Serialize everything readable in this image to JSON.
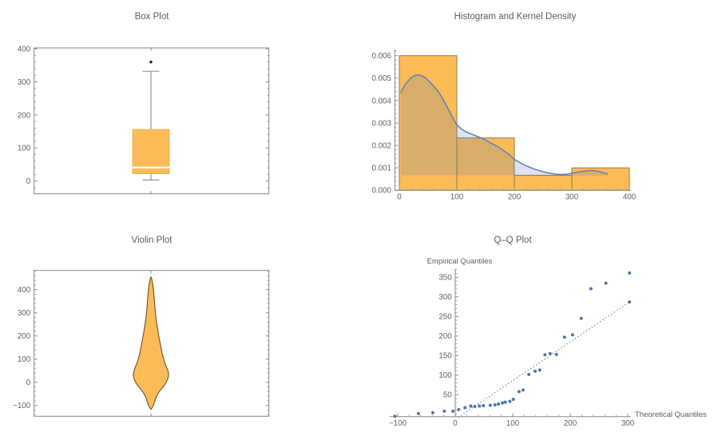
{
  "figure": {
    "kind": "statistical-diagnostics-grid",
    "background": "#ffffff"
  },
  "chart_data": [
    {
      "id": "box",
      "type": "box",
      "title": "Box Plot",
      "orientation": "vertical",
      "stats": {
        "whisker_low": 3,
        "q1": 22,
        "median": 41,
        "q3": 156,
        "whisker_high": 332,
        "outliers": [
          360
        ]
      },
      "yticks": {
        "values": [
          0,
          100,
          200,
          300,
          400
        ],
        "labels": [
          "0",
          "100",
          "200",
          "300",
          "400"
        ]
      },
      "ylim": [
        -39,
        403
      ],
      "grid": false
    },
    {
      "id": "histogram_kde",
      "type": "histogram",
      "title": "Histogram and Kernel Density",
      "bin_width": 100,
      "bins": [
        {
          "from": 0,
          "to": 100,
          "density": 0.006
        },
        {
          "from": 100,
          "to": 200,
          "density": 0.002333
        },
        {
          "from": 200,
          "to": 300,
          "density": 0.000667
        },
        {
          "from": 300,
          "to": 400,
          "density": 0.001
        }
      ],
      "kde_curve": [
        [
          3,
          0.00436
        ],
        [
          10,
          0.0047
        ],
        [
          20,
          0.005
        ],
        [
          30,
          0.00513
        ],
        [
          42,
          0.00507
        ],
        [
          55,
          0.00477
        ],
        [
          70,
          0.00431
        ],
        [
          85,
          0.00362
        ],
        [
          100,
          0.00293
        ],
        [
          115,
          0.00262
        ],
        [
          130,
          0.00246
        ],
        [
          145,
          0.0023
        ],
        [
          160,
          0.0021
        ],
        [
          175,
          0.00188
        ],
        [
          190,
          0.00161
        ],
        [
          200,
          0.00138
        ],
        [
          215,
          0.00116
        ],
        [
          230,
          0.00099
        ],
        [
          245,
          0.00086
        ],
        [
          260,
          0.00077
        ],
        [
          272,
          0.00072
        ],
        [
          285,
          0.00071
        ],
        [
          300,
          0.00076
        ],
        [
          315,
          0.00083
        ],
        [
          330,
          0.00088
        ],
        [
          342,
          0.00086
        ],
        [
          352,
          0.0008
        ],
        [
          362,
          0.00073
        ]
      ],
      "kde_fill_baseline": 0.000667,
      "xticks": {
        "values": [
          0,
          100,
          200,
          300,
          400
        ],
        "labels": [
          "0",
          "100",
          "200",
          "300",
          "400"
        ]
      },
      "yticks": {
        "values": [
          0,
          0.001,
          0.002,
          0.003,
          0.004,
          0.005,
          0.006
        ],
        "labels": [
          "0.000",
          "0.001",
          "0.002",
          "0.003",
          "0.004",
          "0.005",
          "0.006"
        ]
      },
      "xlim": [
        -8,
        403
      ],
      "ylim": [
        0,
        0.00627
      ],
      "grid": false
    },
    {
      "id": "violin",
      "type": "violin",
      "title": "Violin Plot",
      "profile_value_halfwidth": [
        [
          -117,
          0
        ],
        [
          -110,
          1.5
        ],
        [
          -100,
          3
        ],
        [
          -85,
          4.5
        ],
        [
          -70,
          6
        ],
        [
          -55,
          8
        ],
        [
          -40,
          10.5
        ],
        [
          -25,
          14
        ],
        [
          -10,
          17.5
        ],
        [
          0,
          19
        ],
        [
          12,
          20.8
        ],
        [
          25,
          21.8
        ],
        [
          38,
          22
        ],
        [
          52,
          21
        ],
        [
          68,
          19.2
        ],
        [
          85,
          17.3
        ],
        [
          105,
          15.6
        ],
        [
          125,
          14
        ],
        [
          150,
          12.6
        ],
        [
          175,
          11.2
        ],
        [
          200,
          9.8
        ],
        [
          225,
          8.6
        ],
        [
          250,
          7.4
        ],
        [
          275,
          6.4
        ],
        [
          300,
          5.6
        ],
        [
          330,
          4.8
        ],
        [
          360,
          4.2
        ],
        [
          390,
          3.4
        ],
        [
          415,
          2.6
        ],
        [
          435,
          1.6
        ],
        [
          448,
          0.8
        ],
        [
          455,
          0
        ]
      ],
      "yticks": {
        "values": [
          -100,
          0,
          100,
          200,
          300,
          400
        ],
        "labels": [
          "−100",
          "0",
          "100",
          "200",
          "300",
          "400"
        ]
      },
      "ylim": [
        -147,
        483
      ],
      "grid": false
    },
    {
      "id": "qq",
      "type": "scatter",
      "title": "Q–Q Plot",
      "xlabel": "Theoretical Quantiles",
      "ylabel": "Empirical Quantiles",
      "points": [
        [
          -105,
          -5
        ],
        [
          -64,
          2
        ],
        [
          -39,
          4
        ],
        [
          -19,
          8
        ],
        [
          -4,
          8
        ],
        [
          6,
          12
        ],
        [
          17,
          17
        ],
        [
          27,
          21
        ],
        [
          34,
          20
        ],
        [
          42,
          21
        ],
        [
          49,
          22
        ],
        [
          61,
          23
        ],
        [
          69,
          24
        ],
        [
          75,
          26
        ],
        [
          82,
          29
        ],
        [
          87,
          31
        ],
        [
          95,
          33
        ],
        [
          101,
          38
        ],
        [
          111,
          58
        ],
        [
          118,
          62
        ],
        [
          128,
          102
        ],
        [
          139,
          110
        ],
        [
          147,
          113
        ],
        [
          156,
          152
        ],
        [
          165,
          155
        ],
        [
          176,
          153
        ],
        [
          190,
          197
        ],
        [
          204,
          203
        ],
        [
          219,
          245
        ],
        [
          236,
          321
        ],
        [
          262,
          335
        ],
        [
          303,
          361
        ],
        [
          303,
          287
        ]
      ],
      "reference_line": {
        "from": [
          5,
          -8
        ],
        "to": [
          303,
          287
        ],
        "style": "dotted"
      },
      "xticks": {
        "values": [
          -100,
          0,
          100,
          200,
          300
        ],
        "labels": [
          "−100",
          "0",
          "100",
          "200",
          "300"
        ]
      },
      "yticks": {
        "values": [
          50,
          100,
          150,
          200,
          250,
          300,
          350
        ],
        "labels": [
          "50",
          "100",
          "150",
          "200",
          "250",
          "300",
          "350"
        ]
      },
      "xlim": [
        -114,
        306
      ],
      "ylim": [
        -14,
        372
      ],
      "grid": false
    }
  ],
  "colors": {
    "orange_fill": "#FBBB57",
    "box_edge": "#F0A93F",
    "bar_edge": "#8F7748",
    "violin_edge": "#6B5126",
    "kde_line": "#5E81B5",
    "kde_fill": "rgba(94,129,181,0.22)",
    "point_blue": "#4E74AB",
    "reference_line_blue": "#5E81B5",
    "frame_gray": "#878787",
    "tick_label_gray": "#606060",
    "title_gray": "#5C5C5C",
    "median_line": "#FFFFFF",
    "whisker_gray": "#8A8A8A",
    "outlier_black": "#1A1A1A"
  }
}
